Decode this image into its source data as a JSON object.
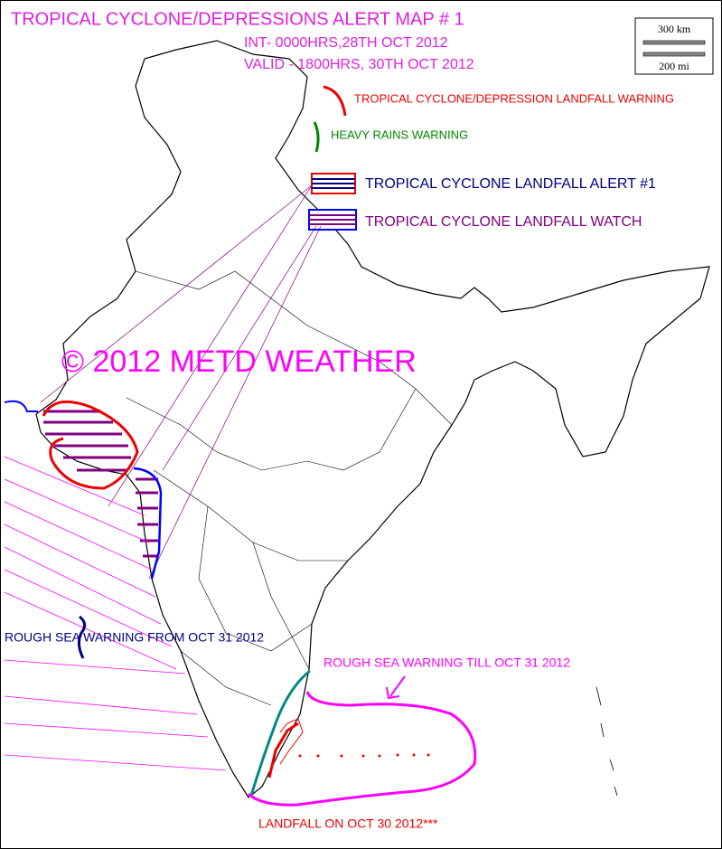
{
  "header": {
    "title": "TROPICAL CYCLONE/DEPRESSIONS ALERT MAP # 1",
    "issued": "INT- 0000HRS,28TH OCT 2012",
    "valid": "VALID - 1800HRS, 30TH OCT 2012"
  },
  "scale_bar": {
    "km": "300 km",
    "mi": "200 mi"
  },
  "legend": [
    {
      "label": "TROPICAL CYCLONE/DEPRESSION LANDFALL WARNING"
    },
    {
      "label": "HEAVY RAINS WARNING"
    },
    {
      "label": "TROPICAL CYCLONE LANDFALL ALERT #1"
    },
    {
      "label": "TROPICAL CYCLONE LANDFALL WATCH"
    }
  ],
  "watermark": "© 2012 METD WEATHER",
  "annotations": {
    "rough_sea_west": "ROUGH SEA WARNING FROM OCT 31 2012",
    "rough_sea_east": "ROUGH SEA WARNING TILL OCT 31 2012",
    "landfall": "LANDFALL ON OCT 30 2012***"
  }
}
